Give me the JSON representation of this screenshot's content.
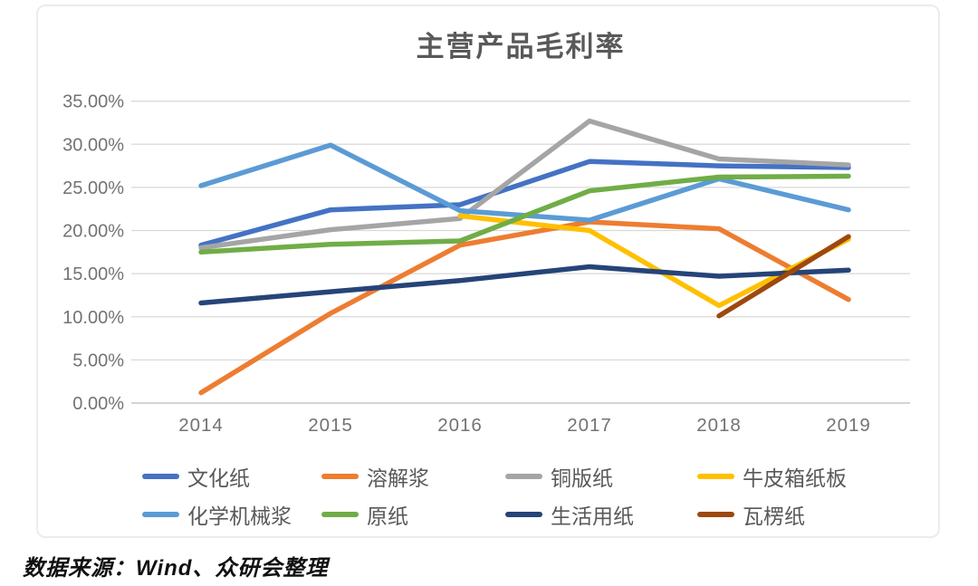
{
  "title": "主营产品毛利率",
  "source": "数据来源：Wind、众研会整理",
  "axis_colors": {
    "tick_label": "#737373",
    "gridline": "#d9d9d9",
    "baseline": "#c6c6c6"
  },
  "chart_data": {
    "type": "line",
    "title": "主营产品毛利率",
    "categories": [
      "2014",
      "2015",
      "2016",
      "2017",
      "2018",
      "2019"
    ],
    "ytick_labels": [
      "0.00%",
      "5.00%",
      "10.00%",
      "15.00%",
      "20.00%",
      "25.00%",
      "30.00%",
      "35.00%"
    ],
    "ylim": [
      0,
      35
    ],
    "ytick_step": 5,
    "grid": true,
    "legend_position": "bottom",
    "series": [
      {
        "name": "文化纸",
        "color": "#4472C4",
        "values": [
          18.3,
          22.4,
          23.0,
          28.0,
          27.5,
          27.3
        ]
      },
      {
        "name": "溶解浆",
        "color": "#ED7D31",
        "values": [
          1.2,
          10.4,
          18.3,
          21.0,
          20.2,
          12.0
        ]
      },
      {
        "name": "铜版纸",
        "color": "#A5A5A5",
        "values": [
          18.0,
          20.1,
          21.4,
          32.7,
          28.3,
          27.6
        ]
      },
      {
        "name": "牛皮箱纸板",
        "color": "#FFC000",
        "values": [
          null,
          null,
          21.7,
          20.0,
          11.3,
          19.0
        ]
      },
      {
        "name": "化学机械浆",
        "color": "#5B9BD5",
        "values": [
          25.2,
          29.9,
          22.3,
          21.2,
          26.0,
          22.4
        ]
      },
      {
        "name": "原纸",
        "color": "#70AD47",
        "values": [
          17.5,
          18.4,
          18.8,
          24.6,
          26.2,
          26.3
        ]
      },
      {
        "name": "生活用纸",
        "color": "#264478",
        "values": [
          11.6,
          12.9,
          14.2,
          15.8,
          14.7,
          15.4
        ]
      },
      {
        "name": "瓦楞纸",
        "color": "#9E480E",
        "values": [
          null,
          null,
          null,
          null,
          10.1,
          19.3
        ]
      }
    ]
  }
}
